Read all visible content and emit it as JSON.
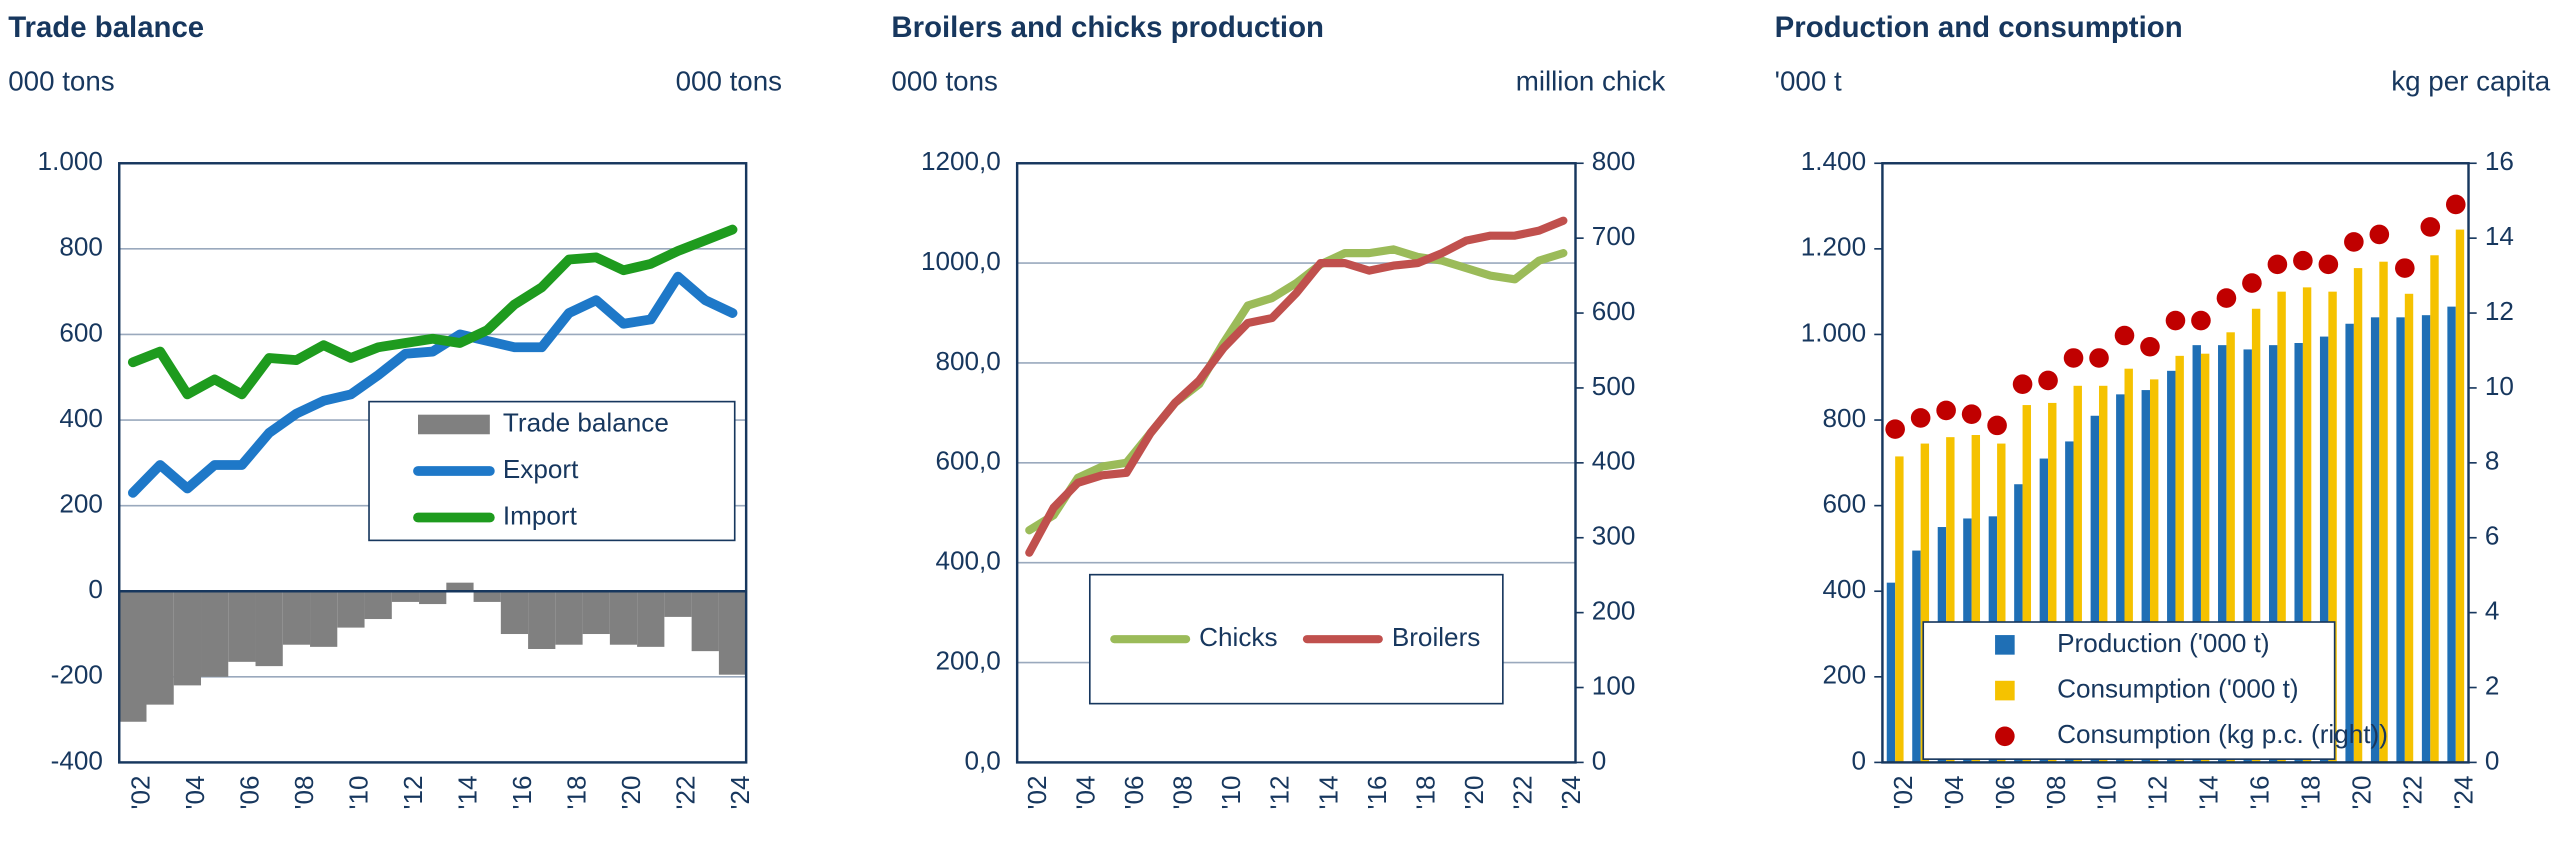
{
  "chart_data": [
    {
      "type": "combo",
      "title": "Trade balance",
      "y_label": "000 tons",
      "y2_label": "000 tons",
      "categories": [
        "'02",
        null,
        "'04",
        null,
        "'06",
        null,
        "'08",
        null,
        "'10",
        null,
        "'12",
        null,
        "'14",
        null,
        "'16",
        null,
        "'18",
        null,
        "'20",
        null,
        "'22",
        null,
        "'24"
      ],
      "ylim": [
        -400,
        1000
      ],
      "yticks": [
        {
          "value": 1000,
          "label": "1.000"
        },
        800,
        600,
        400,
        200,
        0,
        -200,
        -400
      ],
      "grid": true,
      "legend": "center right",
      "series": [
        {
          "name": "Trade balance",
          "type": "bar",
          "color": "#808080",
          "values": [
            -305,
            -265,
            -220,
            -200,
            -165,
            -175,
            -125,
            -130,
            -85,
            -65,
            -25,
            -30,
            20,
            -25,
            -100,
            -135,
            -125,
            -100,
            -125,
            -130,
            -60,
            -140,
            -195
          ]
        },
        {
          "name": "Export",
          "type": "line",
          "color": "#1e78c8",
          "values": [
            230,
            295,
            240,
            295,
            295,
            370,
            415,
            445,
            460,
            505,
            555,
            560,
            600,
            585,
            570,
            570,
            650,
            680,
            625,
            635,
            735,
            680,
            650
          ]
        },
        {
          "name": "Import",
          "type": "line",
          "color": "#1e9b1e",
          "values": [
            535,
            560,
            460,
            495,
            460,
            545,
            540,
            575,
            545,
            570,
            580,
            590,
            580,
            610,
            670,
            710,
            775,
            780,
            750,
            765,
            795,
            820,
            845
          ]
        }
      ]
    },
    {
      "type": "line",
      "title": "Broilers and chicks production",
      "y_label": "000 tons",
      "y2_label": "million chick",
      "categories": [
        "'02",
        null,
        "'04",
        null,
        "'06",
        null,
        "'08",
        null,
        "'10",
        null,
        "'12",
        null,
        "'14",
        null,
        "'16",
        null,
        "'18",
        null,
        "'20",
        null,
        "'22",
        null,
        "'24"
      ],
      "ylim": [
        0,
        1200
      ],
      "yticks": [
        {
          "value": 1200,
          "label": "1200,0"
        },
        {
          "value": 1000,
          "label": "1000,0"
        },
        {
          "value": 800,
          "label": "800,0"
        },
        {
          "value": 600,
          "label": "600,0"
        },
        {
          "value": 400,
          "label": "400,0"
        },
        {
          "value": 200,
          "label": "200,0"
        },
        {
          "value": 0,
          "label": "0,0"
        }
      ],
      "y2lim": [
        0,
        800
      ],
      "y2ticks": [
        800,
        700,
        600,
        500,
        400,
        300,
        200,
        100,
        0
      ],
      "grid": true,
      "legend": "lower center",
      "series": [
        {
          "name": "Chicks",
          "type": "line",
          "axis": "y2",
          "color": "#9bbb59",
          "values": [
            310,
            330,
            380,
            395,
            400,
            440,
            480,
            505,
            560,
            610,
            620,
            640,
            665,
            680,
            680,
            685,
            675,
            670,
            660,
            650,
            645,
            670,
            680
          ]
        },
        {
          "name": "Broilers",
          "type": "line",
          "color": "#c0504d",
          "values": [
            420,
            510,
            560,
            575,
            580,
            660,
            720,
            765,
            830,
            880,
            890,
            940,
            1000,
            1000,
            985,
            995,
            1000,
            1020,
            1045,
            1055,
            1055,
            1065,
            1085
          ]
        }
      ]
    },
    {
      "type": "combo",
      "title": "Production and consumption",
      "y_label": "'000 t",
      "y2_label": "kg per capita",
      "categories": [
        "'02",
        null,
        "'04",
        null,
        "'06",
        null,
        "'08",
        null,
        "'10",
        null,
        "'12",
        null,
        "'14",
        null,
        "'16",
        null,
        "'18",
        null,
        "'20",
        null,
        "'22",
        null,
        "'24"
      ],
      "ylim": [
        0,
        1400
      ],
      "yticks": [
        {
          "value": 1400,
          "label": "1.400"
        },
        {
          "value": 1200,
          "label": "1.200"
        },
        {
          "value": 1000,
          "label": "1.000"
        },
        800,
        600,
        400,
        200,
        0
      ],
      "y2lim": [
        0,
        16
      ],
      "y2ticks": [
        16,
        14,
        12,
        10,
        8,
        6,
        4,
        2,
        0
      ],
      "grid": false,
      "legend": "lower left",
      "series": [
        {
          "name": "Production ('000 t)",
          "type": "bar",
          "color": "#1f6fb5",
          "values": [
            420,
            495,
            550,
            570,
            575,
            650,
            710,
            750,
            810,
            860,
            870,
            915,
            975,
            975,
            965,
            975,
            980,
            995,
            1025,
            1040,
            1040,
            1045,
            1065
          ]
        },
        {
          "name": "Consumption ('000 t)",
          "type": "bar",
          "color": "#f5c200",
          "values": [
            715,
            745,
            760,
            765,
            745,
            835,
            840,
            880,
            880,
            920,
            895,
            950,
            955,
            1005,
            1060,
            1100,
            1110,
            1100,
            1155,
            1170,
            1095,
            1185,
            1245
          ]
        },
        {
          "name": "Consumption (kg p.c. (right))",
          "type": "scatter",
          "axis": "y2",
          "color": "#c00000",
          "values": [
            8.9,
            9.2,
            9.4,
            9.3,
            9.0,
            10.1,
            10.2,
            10.8,
            10.8,
            11.4,
            11.1,
            11.8,
            11.8,
            12.4,
            12.8,
            13.3,
            13.4,
            13.3,
            13.9,
            14.1,
            13.2,
            14.3,
            14.9
          ]
        }
      ]
    }
  ]
}
